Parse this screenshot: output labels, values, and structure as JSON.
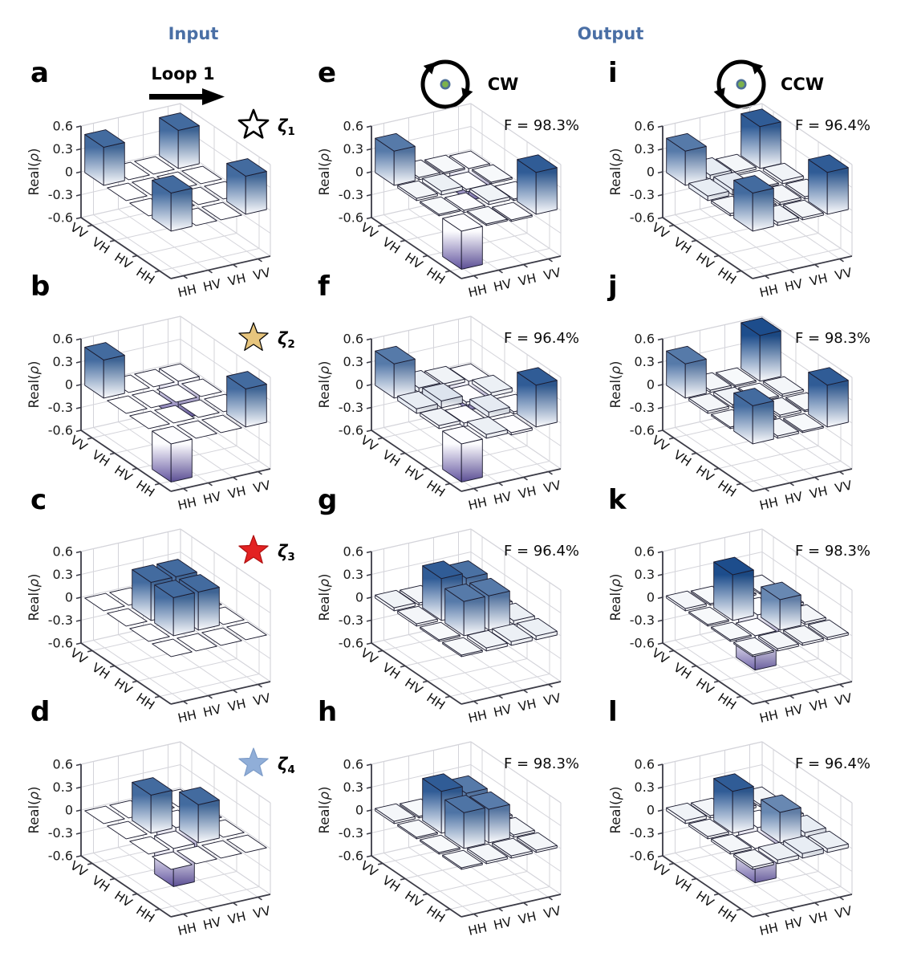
{
  "header": {
    "input_label": "Input",
    "output_label": "Output",
    "loop_label": "Loop 1",
    "header_color": "#4a6fa5"
  },
  "icons": {
    "cw": {
      "label": "CW",
      "meaning": "clockwise-loop-direction"
    },
    "ccw": {
      "label": "CCW",
      "meaning": "counterclockwise-loop-direction"
    },
    "center_dot": {
      "fill": "#7cb24c",
      "ring": "#4d6f96"
    },
    "loop_arrow_color": "#000000"
  },
  "axis": {
    "z_label": "Real(ρ)",
    "z_ticks": [
      "0.6",
      "0.3",
      "0",
      "-0.3",
      "-0.6"
    ],
    "zlim": [
      -0.6,
      0.6
    ],
    "basis": [
      "HH",
      "HV",
      "VH",
      "VV"
    ],
    "left_edge_labels": [
      "VV",
      "VH",
      "HV",
      "HH"
    ],
    "right_edge_labels": [
      "HH",
      "HV",
      "VH",
      "VV"
    ],
    "grid": true,
    "view": "3d-isometric"
  },
  "colors": {
    "bar_positive_max": "#1d4d8c",
    "bar_negative_max": "#42328c",
    "bar_zero_tile": "#ffffff",
    "edge": "#1b1b2f",
    "grid_line": "#d4d4da",
    "axis_line": "#3b3b46"
  },
  "chart_data": [
    {
      "panel": "a",
      "group": "input",
      "type": "bar3d",
      "state_label": {
        "symbol": "ζ",
        "sub": "1"
      },
      "star": {
        "style": "open",
        "fill": "#ffffff",
        "stroke": "#000000"
      },
      "basis": [
        "HH",
        "HV",
        "VH",
        "VV"
      ],
      "zlim": [
        -0.6,
        0.6
      ],
      "matrix": [
        [
          0.5,
          0,
          0,
          0.5
        ],
        [
          0,
          0,
          0,
          0
        ],
        [
          0,
          0,
          0,
          0
        ],
        [
          0.5,
          0,
          0,
          0.5
        ]
      ]
    },
    {
      "panel": "b",
      "group": "input",
      "type": "bar3d",
      "state_label": {
        "symbol": "ζ",
        "sub": "2"
      },
      "star": {
        "style": "filled",
        "fill": "#e7c57d",
        "stroke": "#000000"
      },
      "basis": [
        "HH",
        "HV",
        "VH",
        "VV"
      ],
      "zlim": [
        -0.6,
        0.6
      ],
      "matrix": [
        [
          0.5,
          0,
          0,
          -0.5
        ],
        [
          0,
          0,
          0,
          0
        ],
        [
          0,
          0,
          0,
          0
        ],
        [
          -0.5,
          0,
          0,
          0.5
        ]
      ]
    },
    {
      "panel": "c",
      "group": "input",
      "type": "bar3d",
      "state_label": {
        "symbol": "ζ",
        "sub": "3"
      },
      "star": {
        "style": "filled",
        "fill": "#e32222",
        "stroke": "#b01010"
      },
      "basis": [
        "HH",
        "HV",
        "VH",
        "VV"
      ],
      "zlim": [
        -0.6,
        0.6
      ],
      "matrix": [
        [
          0,
          0,
          0,
          0
        ],
        [
          0,
          0.5,
          0.5,
          0
        ],
        [
          0,
          0.5,
          0.5,
          0
        ],
        [
          0,
          0,
          0,
          0
        ]
      ]
    },
    {
      "panel": "d",
      "group": "input",
      "type": "bar3d",
      "state_label": {
        "symbol": "ζ",
        "sub": "4"
      },
      "star": {
        "style": "filled",
        "fill": "#90aed8",
        "stroke": "#7d9cc8"
      },
      "basis": [
        "HH",
        "HV",
        "VH",
        "VV"
      ],
      "zlim": [
        -0.6,
        0.6
      ],
      "matrix": [
        [
          0,
          0,
          0,
          0
        ],
        [
          0,
          0.5,
          -0.5,
          0
        ],
        [
          0,
          -0.5,
          0.5,
          0
        ],
        [
          0,
          0,
          0,
          0
        ]
      ]
    },
    {
      "panel": "e",
      "group": "cw-output",
      "type": "bar3d",
      "fidelity": "F = 98.3%",
      "basis": [
        "HH",
        "HV",
        "VH",
        "VV"
      ],
      "zlim": [
        -0.6,
        0.6
      ],
      "matrix": [
        [
          0.45,
          0.03,
          0.02,
          -0.42
        ],
        [
          0.03,
          0.05,
          -0.03,
          0.02
        ],
        [
          0.02,
          -0.03,
          0.04,
          -0.02
        ],
        [
          -0.5,
          0.02,
          -0.02,
          0.55
        ]
      ]
    },
    {
      "panel": "f",
      "group": "cw-output",
      "type": "bar3d",
      "fidelity": "F = 96.4%",
      "basis": [
        "HH",
        "HV",
        "VH",
        "VV"
      ],
      "zlim": [
        -0.6,
        0.6
      ],
      "matrix": [
        [
          0.45,
          0.06,
          0.04,
          -0.38
        ],
        [
          0.06,
          0.09,
          -0.04,
          0.05
        ],
        [
          0.04,
          -0.05,
          0.07,
          -0.03
        ],
        [
          -0.5,
          0.05,
          -0.03,
          0.55
        ]
      ]
    },
    {
      "panel": "g",
      "group": "cw-output",
      "type": "bar3d",
      "fidelity": "F = 96.4%",
      "basis": [
        "HH",
        "HV",
        "VH",
        "VV"
      ],
      "zlim": [
        -0.6,
        0.6
      ],
      "matrix": [
        [
          0.04,
          0.03,
          0.02,
          0.02
        ],
        [
          0.03,
          0.55,
          0.48,
          0.04
        ],
        [
          0.02,
          0.45,
          0.45,
          0.05
        ],
        [
          0.02,
          0.04,
          0.05,
          0.05
        ]
      ]
    },
    {
      "panel": "h",
      "group": "cw-output",
      "type": "bar3d",
      "fidelity": "F = 98.3%",
      "basis": [
        "HH",
        "HV",
        "VH",
        "VV"
      ],
      "zlim": [
        -0.6,
        0.6
      ],
      "matrix": [
        [
          0.03,
          0.02,
          0.02,
          0.02
        ],
        [
          0.02,
          0.55,
          0.45,
          0.03
        ],
        [
          0.02,
          0.47,
          0.44,
          0.03
        ],
        [
          0.02,
          0.03,
          0.03,
          0.03
        ]
      ]
    },
    {
      "panel": "i",
      "group": "ccw-output",
      "type": "bar3d",
      "fidelity": "F = 96.4%",
      "basis": [
        "HH",
        "HV",
        "VH",
        "VV"
      ],
      "zlim": [
        -0.6,
        0.6
      ],
      "matrix": [
        [
          0.45,
          0.06,
          0.03,
          0.55
        ],
        [
          0.06,
          0.07,
          0.02,
          0.04
        ],
        [
          0.03,
          0.02,
          0.03,
          0.03
        ],
        [
          0.5,
          0.04,
          0.03,
          0.55
        ]
      ]
    },
    {
      "panel": "j",
      "group": "ccw-output",
      "type": "bar3d",
      "fidelity": "F = 98.3%",
      "basis": [
        "HH",
        "HV",
        "VH",
        "VV"
      ],
      "zlim": [
        -0.6,
        0.6
      ],
      "matrix": [
        [
          0.45,
          0.03,
          0.02,
          0.6
        ],
        [
          0.03,
          0.04,
          0.02,
          0.03
        ],
        [
          0.02,
          0.02,
          0.03,
          0.02
        ],
        [
          0.5,
          0.03,
          0.02,
          0.55
        ]
      ]
    },
    {
      "panel": "k",
      "group": "ccw-output",
      "type": "bar3d",
      "fidelity": "F = 98.3%",
      "basis": [
        "HH",
        "HV",
        "VH",
        "VV"
      ],
      "zlim": [
        -0.6,
        0.6
      ],
      "matrix": [
        [
          0.03,
          0.02,
          0.02,
          0.02
        ],
        [
          0.02,
          0.6,
          -0.35,
          0.03
        ],
        [
          0.02,
          -0.45,
          0.4,
          0.03
        ],
        [
          0.02,
          0.03,
          0.03,
          0.03
        ]
      ]
    },
    {
      "panel": "l",
      "group": "ccw-output",
      "type": "bar3d",
      "fidelity": "F = 96.4%",
      "basis": [
        "HH",
        "HV",
        "VH",
        "VV"
      ],
      "zlim": [
        -0.6,
        0.6
      ],
      "matrix": [
        [
          0.04,
          0.03,
          0.03,
          0.03
        ],
        [
          0.03,
          0.55,
          -0.35,
          0.05
        ],
        [
          0.03,
          -0.45,
          0.4,
          0.06
        ],
        [
          0.03,
          0.05,
          0.06,
          0.05
        ]
      ]
    }
  ]
}
